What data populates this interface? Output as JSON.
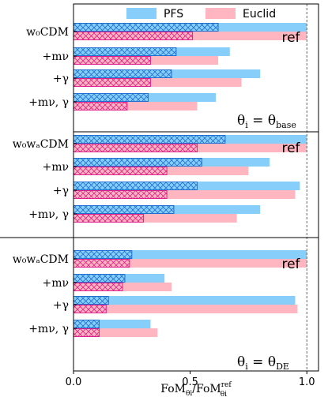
{
  "chart_data": {
    "type": "bar",
    "orientation": "horizontal",
    "xlim": [
      0,
      1.05
    ],
    "xticks": [
      "0.0",
      "0.5",
      "1.0"
    ],
    "xlabel": "FoM",
    "xlabel_sub": "θi",
    "xlabel_den": "/FoM",
    "xlabel_den_sup": "ref",
    "xlabel_den_sub": "θi",
    "legend": [
      "PFS",
      "Euclid"
    ],
    "colors": {
      "pfs": "#87cefa",
      "euclid": "#ffb6c1",
      "pfs_hatch": "#1e6fd0",
      "euclid_hatch": "#e0208a"
    },
    "ref_label": "ref",
    "panels": [
      {
        "theta_base": "θ",
        "theta_sub": "i",
        "theta_rhs": "θ",
        "theta_rhs_sub": "base",
        "rows": [
          {
            "label": "w₀CDM",
            "pfs": 1.0,
            "euclid": 1.0,
            "pfs_hatch": 0.62,
            "euclid_hatch": 0.51
          },
          {
            "label": "+mν",
            "pfs": 0.67,
            "euclid": 0.62,
            "pfs_hatch": 0.44,
            "euclid_hatch": 0.33
          },
          {
            "label": "+γ",
            "pfs": 0.8,
            "euclid": 0.72,
            "pfs_hatch": 0.42,
            "euclid_hatch": 0.33
          },
          {
            "label": "+mν, γ",
            "pfs": 0.61,
            "euclid": 0.53,
            "pfs_hatch": 0.32,
            "euclid_hatch": 0.23
          }
        ]
      },
      {
        "rows": [
          {
            "label": "w₀wₐCDM",
            "pfs": 1.0,
            "euclid": 1.0,
            "pfs_hatch": 0.65,
            "euclid_hatch": 0.53
          },
          {
            "label": "+mν",
            "pfs": 0.84,
            "euclid": 0.75,
            "pfs_hatch": 0.55,
            "euclid_hatch": 0.4
          },
          {
            "label": "+γ",
            "pfs": 0.97,
            "euclid": 0.95,
            "pfs_hatch": 0.53,
            "euclid_hatch": 0.4
          },
          {
            "label": "+mν, γ",
            "pfs": 0.8,
            "euclid": 0.7,
            "pfs_hatch": 0.43,
            "euclid_hatch": 0.3
          }
        ]
      },
      {
        "theta_base": "θ",
        "theta_sub": "i",
        "theta_rhs": "θ",
        "theta_rhs_sub": "DE",
        "rows": [
          {
            "label": "w₀wₐCDM",
            "pfs": 1.0,
            "euclid": 1.0,
            "pfs_hatch": 0.25,
            "euclid_hatch": 0.24
          },
          {
            "label": "+mν",
            "pfs": 0.39,
            "euclid": 0.42,
            "pfs_hatch": 0.22,
            "euclid_hatch": 0.21
          },
          {
            "label": "+γ",
            "pfs": 0.95,
            "euclid": 0.96,
            "pfs_hatch": 0.15,
            "euclid_hatch": 0.14
          },
          {
            "label": "+mν, γ",
            "pfs": 0.33,
            "euclid": 0.36,
            "pfs_hatch": 0.11,
            "euclid_hatch": 0.11
          }
        ]
      }
    ]
  }
}
